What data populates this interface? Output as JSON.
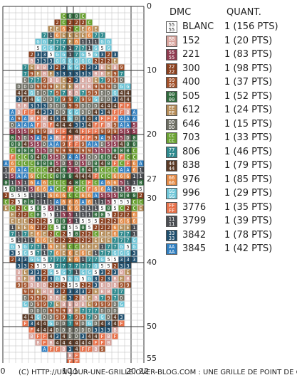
{
  "grid": {
    "columns": 22,
    "rows": 56,
    "y_labels": [
      "0",
      "10",
      "20",
      "27",
      "30",
      "40",
      "50",
      "55"
    ],
    "x_labels": [
      "0",
      "10",
      "11",
      "20",
      "22"
    ]
  },
  "legend": {
    "header_dmc": "DMC",
    "header_qty": "QUANT.",
    "items": [
      {
        "code": "BLANC",
        "qty": "1 (156 PTS)",
        "symbol": "5",
        "color": "#ffffff",
        "fg": "#333333"
      },
      {
        "code": "152",
        "qty": "1 (20 PTS)",
        "symbol": "B",
        "color": "#d8a39c",
        "fg": "#ffffff"
      },
      {
        "code": "221",
        "qty": "1 (83 PTS)",
        "symbol": "5",
        "color": "#8f3a4f",
        "fg": "#ffffff"
      },
      {
        "code": "300",
        "qty": "1 (98 PTS)",
        "symbol": "2",
        "color": "#8a3f1d",
        "fg": "#ffffff"
      },
      {
        "code": "400",
        "qty": "1 (37 PTS)",
        "symbol": "9",
        "color": "#a2512a",
        "fg": "#ffffff"
      },
      {
        "code": "505",
        "qty": "1 (52 PTS)",
        "symbol": "0",
        "color": "#2f6a3c",
        "fg": "#ffffff"
      },
      {
        "code": "612",
        "qty": "1 (24 PTS)",
        "symbol": "E",
        "color": "#b58c57",
        "fg": "#ffffff"
      },
      {
        "code": "646",
        "qty": "1 (15 PTS)",
        "symbol": "D",
        "color": "#6d6e63",
        "fg": "#ffffff"
      },
      {
        "code": "703",
        "qty": "1 (33 PTS)",
        "symbol": "C",
        "color": "#6aa232",
        "fg": "#ffffff"
      },
      {
        "code": "806",
        "qty": "1 (46 PTS)",
        "symbol": "7",
        "color": "#2f8a8e",
        "fg": "#ffffff"
      },
      {
        "code": "838",
        "qty": "1 (79 PTS)",
        "symbol": "4",
        "color": "#5a3a26",
        "fg": "#ffffff"
      },
      {
        "code": "976",
        "qty": "1 (85 PTS)",
        "symbol": "6",
        "color": "#e48a45",
        "fg": "#ffffff"
      },
      {
        "code": "996",
        "qty": "1 (29 PTS)",
        "symbol": "G",
        "color": "#6ec6d8",
        "fg": "#ffffff"
      },
      {
        "code": "3776",
        "qty": "1 (35 PTS)",
        "symbol": "F",
        "color": "#e8724b",
        "fg": "#ffffff"
      },
      {
        "code": "3799",
        "qty": "1 (39 PTS)",
        "symbol": "1",
        "color": "#4a4d52",
        "fg": "#ffffff"
      },
      {
        "code": "3842",
        "qty": "1 (78 PTS)",
        "symbol": "3",
        "color": "#1f4f6e",
        "fg": "#ffffff"
      },
      {
        "code": "3845",
        "qty": "1 (42 PTS)",
        "symbol": "A",
        "color": "#2f7fc1",
        "fg": "#ffffff"
      }
    ]
  },
  "footer": {
    "text": "(C) HTTP://UN-JOUR-UNE-GRILLE.OVER-BLOG.COM : UNE GRILLE DE POINT DE CR"
  }
}
